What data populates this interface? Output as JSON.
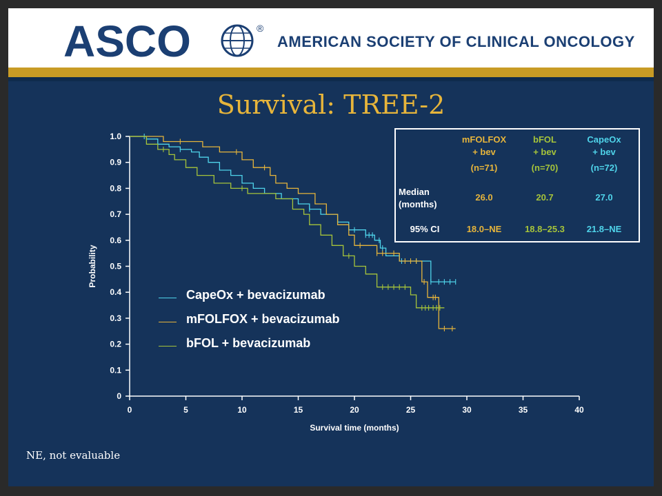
{
  "header": {
    "logo_text": "ASCO",
    "registered_mark": "®",
    "org_name": "AMERICAN SOCIETY OF CLINICAL ONCOLOGY"
  },
  "slide": {
    "title": "Survival: TREE-2",
    "footnote": "NE, not evaluable"
  },
  "colors": {
    "background": "#15335a",
    "accent": "#c89b25",
    "title": "#e7b53b",
    "capeox": "#4fd4ea",
    "mfolfox": "#e7b53b",
    "bfol": "#a6c43a"
  },
  "table": {
    "headers": [
      {
        "line1": "mFOLFOX",
        "line2": "+ bev",
        "n": "(n=71)"
      },
      {
        "line1": "bFOL",
        "line2": "+ bev",
        "n": "(n=70)"
      },
      {
        "line1": "CapeOx",
        "line2": "+ bev",
        "n": "(n=72)"
      }
    ],
    "rows": [
      {
        "label_line1": "Median",
        "label_line2": "(months)",
        "values": [
          "26.0",
          "20.7",
          "27.0"
        ]
      },
      {
        "label_line1": "95% CI",
        "label_line2": "",
        "values": [
          "18.0–NE",
          "18.8–25.3",
          "21.8–NE"
        ]
      }
    ]
  },
  "chart_data": {
    "type": "line",
    "title": "Survival: TREE-2",
    "xlabel": "Survival time (months)",
    "ylabel": "Probability",
    "xlim": [
      0,
      40
    ],
    "ylim": [
      0,
      1.0
    ],
    "x_ticks": [
      "0",
      "5",
      "10",
      "15",
      "20",
      "25",
      "30",
      "35",
      "40"
    ],
    "y_ticks": [
      "0",
      "0.1",
      "0.2",
      "0.3",
      "0.4",
      "0.5",
      "0.6",
      "0.7",
      "0.8",
      "0.9",
      "1.0"
    ],
    "grid": false,
    "legend_position": "lower-left",
    "series": [
      {
        "name": "CapeOx + bevacizumab",
        "color": "#4fd4ea",
        "points": [
          [
            0,
            1.0
          ],
          [
            1.5,
            1.0
          ],
          [
            1.5,
            0.99
          ],
          [
            2.5,
            0.99
          ],
          [
            2.5,
            0.97
          ],
          [
            3.5,
            0.97
          ],
          [
            3.5,
            0.96
          ],
          [
            4.5,
            0.96
          ],
          [
            4.5,
            0.95
          ],
          [
            5.5,
            0.95
          ],
          [
            5.5,
            0.94
          ],
          [
            6.2,
            0.94
          ],
          [
            6.2,
            0.92
          ],
          [
            7,
            0.92
          ],
          [
            7,
            0.9
          ],
          [
            8,
            0.9
          ],
          [
            8,
            0.87
          ],
          [
            9,
            0.87
          ],
          [
            9,
            0.85
          ],
          [
            10,
            0.85
          ],
          [
            10,
            0.82
          ],
          [
            11,
            0.82
          ],
          [
            11,
            0.8
          ],
          [
            12,
            0.8
          ],
          [
            12,
            0.78
          ],
          [
            13.5,
            0.78
          ],
          [
            13.5,
            0.76
          ],
          [
            15,
            0.76
          ],
          [
            15,
            0.74
          ],
          [
            16,
            0.74
          ],
          [
            16,
            0.72
          ],
          [
            17,
            0.72
          ],
          [
            17,
            0.7
          ],
          [
            18.5,
            0.7
          ],
          [
            18.5,
            0.67
          ],
          [
            19.5,
            0.67
          ],
          [
            19.5,
            0.64
          ],
          [
            21,
            0.64
          ],
          [
            21,
            0.62
          ],
          [
            21.8,
            0.62
          ],
          [
            21.8,
            0.6
          ],
          [
            22.3,
            0.6
          ],
          [
            22.3,
            0.57
          ],
          [
            22.8,
            0.57
          ],
          [
            22.8,
            0.54
          ],
          [
            24,
            0.54
          ],
          [
            24,
            0.52
          ],
          [
            26.8,
            0.52
          ],
          [
            26.8,
            0.44
          ],
          [
            29,
            0.44
          ]
        ],
        "censor_x": [
          1.3,
          4.5,
          16,
          18.5,
          20,
          21,
          21.3,
          21.6,
          22.2,
          22.5,
          24.2,
          25.5,
          26.8,
          27.5,
          28,
          28.5,
          29
        ]
      },
      {
        "name": "mFOLFOX + bevacizumab",
        "color": "#e7b53b",
        "points": [
          [
            0,
            1.0
          ],
          [
            3,
            1.0
          ],
          [
            3,
            0.98
          ],
          [
            6.5,
            0.98
          ],
          [
            6.5,
            0.96
          ],
          [
            8,
            0.96
          ],
          [
            8,
            0.94
          ],
          [
            10,
            0.94
          ],
          [
            10,
            0.91
          ],
          [
            11,
            0.91
          ],
          [
            11,
            0.88
          ],
          [
            12.5,
            0.88
          ],
          [
            12.5,
            0.85
          ],
          [
            13,
            0.85
          ],
          [
            13,
            0.82
          ],
          [
            14,
            0.82
          ],
          [
            14,
            0.8
          ],
          [
            15,
            0.8
          ],
          [
            15,
            0.78
          ],
          [
            16.5,
            0.78
          ],
          [
            16.5,
            0.74
          ],
          [
            17.5,
            0.74
          ],
          [
            17.5,
            0.7
          ],
          [
            18.5,
            0.7
          ],
          [
            18.5,
            0.66
          ],
          [
            19.5,
            0.66
          ],
          [
            19.5,
            0.62
          ],
          [
            20,
            0.62
          ],
          [
            20,
            0.58
          ],
          [
            22,
            0.58
          ],
          [
            22,
            0.55
          ],
          [
            24,
            0.55
          ],
          [
            24,
            0.52
          ],
          [
            26,
            0.52
          ],
          [
            26,
            0.44
          ],
          [
            26.5,
            0.44
          ],
          [
            26.5,
            0.38
          ],
          [
            27.5,
            0.38
          ],
          [
            27.5,
            0.26
          ],
          [
            29,
            0.26
          ]
        ],
        "censor_x": [
          4.5,
          9.5,
          12,
          20.5,
          22,
          22.5,
          23.5,
          24.5,
          25,
          25.5,
          26.2,
          27,
          27.2,
          28,
          28.7
        ]
      },
      {
        "name": "bFOL + bevacizumab",
        "color": "#a6c43a",
        "points": [
          [
            0,
            1.0
          ],
          [
            1.5,
            1.0
          ],
          [
            1.5,
            0.97
          ],
          [
            2.5,
            0.97
          ],
          [
            2.5,
            0.95
          ],
          [
            3.5,
            0.95
          ],
          [
            3.5,
            0.93
          ],
          [
            4,
            0.93
          ],
          [
            4,
            0.91
          ],
          [
            5,
            0.91
          ],
          [
            5,
            0.88
          ],
          [
            6,
            0.88
          ],
          [
            6,
            0.85
          ],
          [
            7.5,
            0.85
          ],
          [
            7.5,
            0.82
          ],
          [
            9,
            0.82
          ],
          [
            9,
            0.8
          ],
          [
            10.5,
            0.8
          ],
          [
            10.5,
            0.78
          ],
          [
            13,
            0.78
          ],
          [
            13,
            0.76
          ],
          [
            14.5,
            0.76
          ],
          [
            14.5,
            0.72
          ],
          [
            15.5,
            0.72
          ],
          [
            15.5,
            0.7
          ],
          [
            16,
            0.7
          ],
          [
            16,
            0.66
          ],
          [
            17,
            0.66
          ],
          [
            17,
            0.62
          ],
          [
            18,
            0.62
          ],
          [
            18,
            0.58
          ],
          [
            19,
            0.58
          ],
          [
            19,
            0.54
          ],
          [
            20,
            0.54
          ],
          [
            20,
            0.5
          ],
          [
            21,
            0.5
          ],
          [
            21,
            0.47
          ],
          [
            22,
            0.47
          ],
          [
            22,
            0.42
          ],
          [
            25,
            0.42
          ],
          [
            25,
            0.39
          ],
          [
            25.5,
            0.39
          ],
          [
            25.5,
            0.34
          ],
          [
            28,
            0.34
          ]
        ],
        "censor_x": [
          3.0,
          10,
          19.5,
          22.5,
          23,
          23.5,
          24,
          24.5,
          26,
          26.3,
          26.6,
          27,
          27.3,
          27.6
        ]
      }
    ]
  }
}
